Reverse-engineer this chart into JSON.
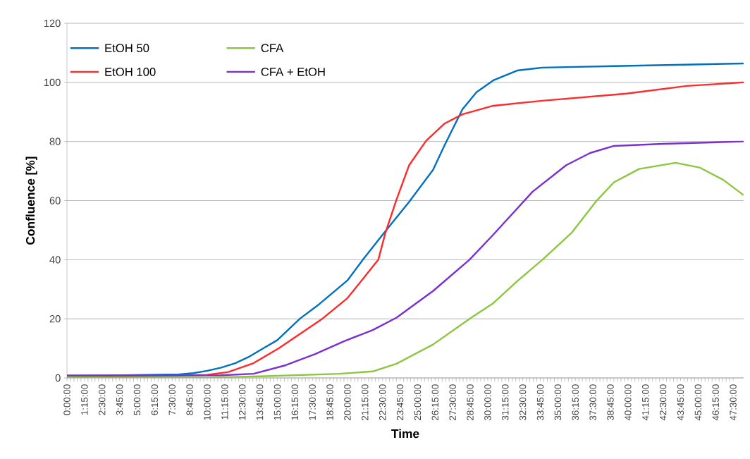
{
  "chart_data": {
    "type": "line",
    "xlabel": "Time",
    "ylabel": "Confluence [%]",
    "xlim": [
      0,
      48.25
    ],
    "ylim": [
      0,
      120
    ],
    "yticks": [
      0,
      20,
      40,
      60,
      80,
      100,
      120
    ],
    "xticks": [
      {
        "value": 0,
        "label": "0:00:00"
      },
      {
        "value": 1.25,
        "label": "1:15:00"
      },
      {
        "value": 2.5,
        "label": "2:30:00"
      },
      {
        "value": 3.75,
        "label": "3:45:00"
      },
      {
        "value": 5,
        "label": "5:00:00"
      },
      {
        "value": 6.25,
        "label": "6:15:00"
      },
      {
        "value": 7.5,
        "label": "7:30:00"
      },
      {
        "value": 8.75,
        "label": "8:45:00"
      },
      {
        "value": 10,
        "label": "10:00:00"
      },
      {
        "value": 11.25,
        "label": "11:15:00"
      },
      {
        "value": 12.5,
        "label": "12:30:00"
      },
      {
        "value": 13.75,
        "label": "13:45:00"
      },
      {
        "value": 15,
        "label": "15:00:00"
      },
      {
        "value": 16.25,
        "label": "16:15:00"
      },
      {
        "value": 17.5,
        "label": "17:30:00"
      },
      {
        "value": 18.75,
        "label": "18:45:00"
      },
      {
        "value": 20,
        "label": "20:00:00"
      },
      {
        "value": 21.25,
        "label": "21:15:00"
      },
      {
        "value": 22.5,
        "label": "22:30:00"
      },
      {
        "value": 23.75,
        "label": "23:45:00"
      },
      {
        "value": 25,
        "label": "25:00:00"
      },
      {
        "value": 26.25,
        "label": "26:15:00"
      },
      {
        "value": 27.5,
        "label": "27:30:00"
      },
      {
        "value": 28.75,
        "label": "28:45:00"
      },
      {
        "value": 30,
        "label": "30:00:00"
      },
      {
        "value": 31.25,
        "label": "31:15:00"
      },
      {
        "value": 32.5,
        "label": "32:30:00"
      },
      {
        "value": 33.75,
        "label": "33:45:00"
      },
      {
        "value": 35,
        "label": "35:00:00"
      },
      {
        "value": 36.25,
        "label": "36:15:00"
      },
      {
        "value": 37.5,
        "label": "37:30:00"
      },
      {
        "value": 38.75,
        "label": "38:45:00"
      },
      {
        "value": 40,
        "label": "40:00:00"
      },
      {
        "value": 41.25,
        "label": "41:15:00"
      },
      {
        "value": 42.5,
        "label": "42:30:00"
      },
      {
        "value": 43.75,
        "label": "43:45:00"
      },
      {
        "value": 45,
        "label": "45:00:00"
      },
      {
        "value": 46.25,
        "label": "46:15:00"
      },
      {
        "value": 47.5,
        "label": "47:30:00"
      }
    ],
    "grid": "y",
    "legend": "top left",
    "marker": "none",
    "line_style": "solid",
    "series": [
      {
        "name": "EtOH 50",
        "color": "#0070c0",
        "x": [
          0,
          4,
          8,
          9,
          10,
          11,
          12,
          13,
          14,
          15,
          16.6,
          18,
          20,
          21.1,
          22.6,
          24.4,
          26.1,
          26.9,
          28.2,
          29.2,
          30.4,
          32.1,
          33.9,
          39,
          44,
          48.2
        ],
        "values": [
          0.8,
          0.9,
          1.2,
          1.6,
          2.4,
          3.5,
          5,
          7.2,
          10,
          12.8,
          20,
          25,
          33,
          40,
          49,
          59.6,
          70.4,
          78.5,
          90.9,
          96.7,
          100.7,
          104,
          105,
          105.5,
          106,
          106.4
        ]
      },
      {
        "name": "EtOH 100",
        "color": "#ff2a2a",
        "x": [
          0,
          10,
          11.5,
          13.3,
          15.1,
          18.2,
          20,
          22.2,
          22.7,
          23.5,
          24.4,
          25.6,
          26.9,
          28.2,
          30.4,
          33.9,
          39.9,
          44.2,
          48.2
        ],
        "values": [
          0.3,
          1,
          2,
          5,
          10,
          20,
          27,
          40,
          49,
          60.4,
          72,
          80.2,
          86,
          89.2,
          92.1,
          93.8,
          96.2,
          98.8,
          100
        ]
      },
      {
        "name": "CFA",
        "color": "#8cc63f",
        "x": [
          0,
          10,
          14.2,
          19.4,
          21.8,
          23.5,
          26.1,
          28.7,
          30.4,
          32.1,
          33.9,
          36,
          37.7,
          39,
          40.8,
          43.4,
          45.1,
          46.8,
          48.2
        ],
        "values": [
          0.2,
          0.1,
          0.6,
          1.4,
          2.2,
          4.8,
          11.3,
          20,
          25.3,
          32.7,
          40,
          49.2,
          59.6,
          66.2,
          70.7,
          72.8,
          71.2,
          67,
          62
        ]
      },
      {
        "name": "CFA + EtOH",
        "color": "#7b2fd0",
        "x": [
          0,
          8,
          11,
          13.3,
          15.6,
          17.7,
          19.8,
          21.8,
          23.5,
          26.1,
          28.7,
          30.4,
          33.2,
          35.6,
          37.3,
          39,
          42.5,
          48.2
        ],
        "values": [
          0.8,
          0.8,
          0.9,
          1.4,
          4.3,
          8.1,
          12.5,
          16.2,
          20.4,
          29.4,
          40,
          48.5,
          63,
          72,
          76.1,
          78.5,
          79.2,
          80
        ]
      }
    ]
  }
}
